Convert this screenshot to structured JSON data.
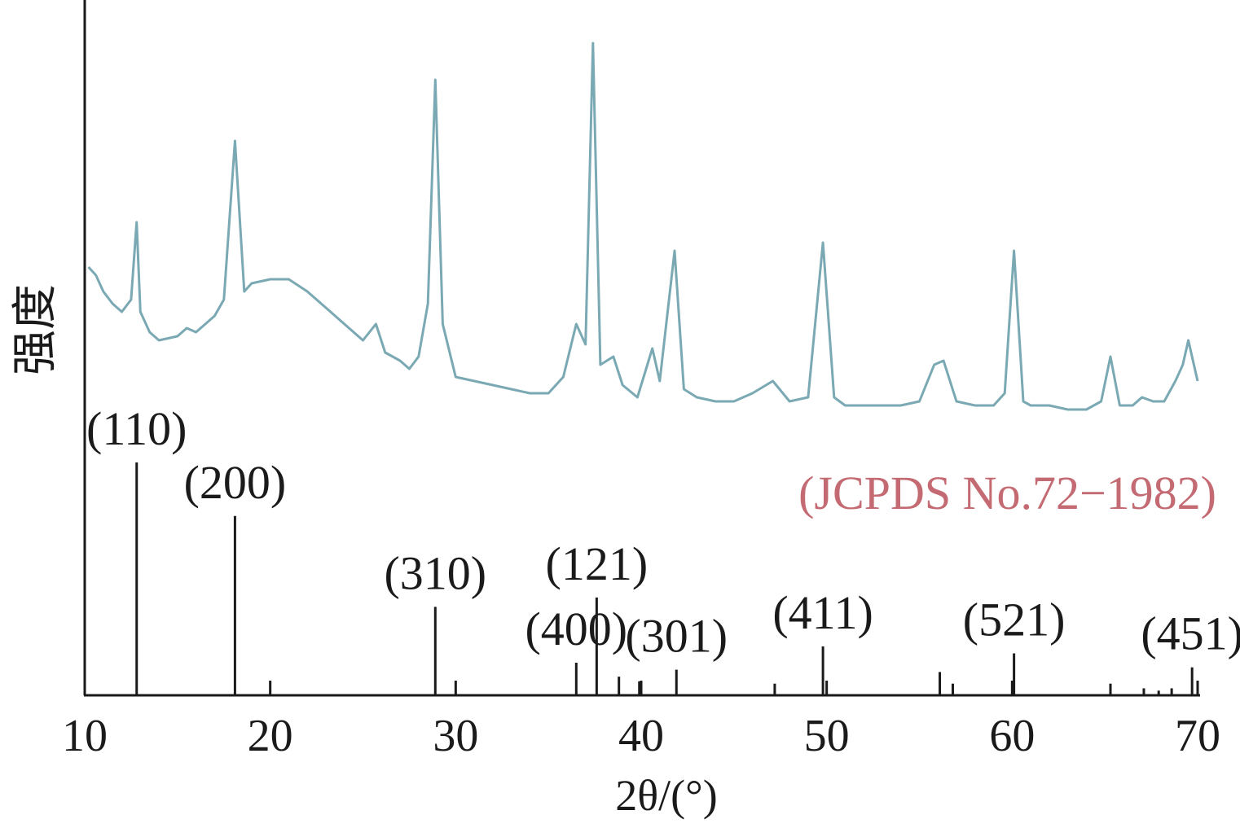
{
  "chart_data": {
    "type": "line",
    "xlabel": "2θ/(°)",
    "ylabel": "强度",
    "xlim": [
      10,
      70
    ],
    "xticks": [
      "10",
      "20",
      "30",
      "40",
      "50",
      "60",
      "70"
    ],
    "colors": {
      "pattern": "#7aa9b3",
      "reference_label": "#c46a72",
      "axis": "#1a1a1a"
    },
    "reference_label": "(JCPDS No.72−1982)",
    "series": [
      {
        "points": [
          [
            10.2,
            0.44
          ],
          [
            10.6,
            0.42
          ],
          [
            11.0,
            0.38
          ],
          [
            11.5,
            0.35
          ],
          [
            12.0,
            0.33
          ],
          [
            12.5,
            0.36
          ],
          [
            12.8,
            0.55
          ],
          [
            13.0,
            0.33
          ],
          [
            13.5,
            0.28
          ],
          [
            14.0,
            0.26
          ],
          [
            15.0,
            0.27
          ],
          [
            15.5,
            0.29
          ],
          [
            16.0,
            0.28
          ],
          [
            16.5,
            0.3
          ],
          [
            17.0,
            0.32
          ],
          [
            17.5,
            0.36
          ],
          [
            18.1,
            0.75
          ],
          [
            18.6,
            0.38
          ],
          [
            19.0,
            0.4
          ],
          [
            20.0,
            0.41
          ],
          [
            21.0,
            0.41
          ],
          [
            22.0,
            0.38
          ],
          [
            23.0,
            0.34
          ],
          [
            24.0,
            0.3
          ],
          [
            25.0,
            0.26
          ],
          [
            25.7,
            0.3
          ],
          [
            26.2,
            0.23
          ],
          [
            27.0,
            0.21
          ],
          [
            27.5,
            0.19
          ],
          [
            28.0,
            0.22
          ],
          [
            28.5,
            0.35
          ],
          [
            28.9,
            0.9
          ],
          [
            29.3,
            0.3
          ],
          [
            30.0,
            0.17
          ],
          [
            31.0,
            0.16
          ],
          [
            32.0,
            0.15
          ],
          [
            33.0,
            0.14
          ],
          [
            34.0,
            0.13
          ],
          [
            35.0,
            0.13
          ],
          [
            35.8,
            0.17
          ],
          [
            36.5,
            0.3
          ],
          [
            37.0,
            0.25
          ],
          [
            37.4,
            0.99
          ],
          [
            37.8,
            0.2
          ],
          [
            38.5,
            0.22
          ],
          [
            39.0,
            0.15
          ],
          [
            39.8,
            0.12
          ],
          [
            40.6,
            0.24
          ],
          [
            41.0,
            0.16
          ],
          [
            41.8,
            0.48
          ],
          [
            42.3,
            0.14
          ],
          [
            43.0,
            0.12
          ],
          [
            44.0,
            0.11
          ],
          [
            45.0,
            0.11
          ],
          [
            46.0,
            0.13
          ],
          [
            47.1,
            0.16
          ],
          [
            48.0,
            0.11
          ],
          [
            49.0,
            0.12
          ],
          [
            49.8,
            0.5
          ],
          [
            50.4,
            0.12
          ],
          [
            51.0,
            0.1
          ],
          [
            52.0,
            0.1
          ],
          [
            53.0,
            0.1
          ],
          [
            54.0,
            0.1
          ],
          [
            55.0,
            0.11
          ],
          [
            55.8,
            0.2
          ],
          [
            56.3,
            0.21
          ],
          [
            57.0,
            0.11
          ],
          [
            58.0,
            0.1
          ],
          [
            59.0,
            0.1
          ],
          [
            59.6,
            0.13
          ],
          [
            60.1,
            0.48
          ],
          [
            60.6,
            0.11
          ],
          [
            61.0,
            0.1
          ],
          [
            62.0,
            0.1
          ],
          [
            63.0,
            0.09
          ],
          [
            64.0,
            0.09
          ],
          [
            64.8,
            0.11
          ],
          [
            65.3,
            0.22
          ],
          [
            65.8,
            0.1
          ],
          [
            66.5,
            0.1
          ],
          [
            67.0,
            0.12
          ],
          [
            67.6,
            0.11
          ],
          [
            68.2,
            0.11
          ],
          [
            68.8,
            0.16
          ],
          [
            69.2,
            0.2
          ],
          [
            69.5,
            0.26
          ],
          [
            69.8,
            0.2
          ],
          [
            70.0,
            0.16
          ]
        ]
      }
    ],
    "reference_lines": [
      {
        "x": 12.8,
        "h": 1.0,
        "label": "(110)"
      },
      {
        "x": 18.1,
        "h": 0.77,
        "label": "(200)"
      },
      {
        "x": 28.9,
        "h": 0.38,
        "label": "(310)"
      },
      {
        "x": 36.5,
        "h": 0.14,
        "label": "(400)"
      },
      {
        "x": 37.6,
        "h": 0.42,
        "label": "(121)"
      },
      {
        "x": 38.8,
        "h": 0.08
      },
      {
        "x": 39.9,
        "h": 0.06
      },
      {
        "x": 41.9,
        "h": 0.11,
        "label": "(301)"
      },
      {
        "x": 47.2,
        "h": 0.05
      },
      {
        "x": 49.8,
        "h": 0.21,
        "label": "(411)"
      },
      {
        "x": 56.1,
        "h": 0.1
      },
      {
        "x": 56.8,
        "h": 0.05
      },
      {
        "x": 60.1,
        "h": 0.18,
        "label": "(521)"
      },
      {
        "x": 65.3,
        "h": 0.05
      },
      {
        "x": 67.1,
        "h": 0.03
      },
      {
        "x": 67.9,
        "h": 0.02
      },
      {
        "x": 68.6,
        "h": 0.03
      },
      {
        "x": 69.7,
        "h": 0.12,
        "label": "(451)"
      }
    ]
  }
}
